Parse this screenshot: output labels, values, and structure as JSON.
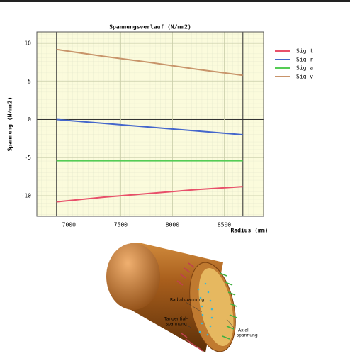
{
  "chart_data": {
    "type": "line",
    "title": "Spannungsverlauf (N/mm2)",
    "x_label": "Radius (mm)",
    "y_label": "Spannung (N/mm2)",
    "x": [
      6880,
      7330,
      7780,
      8230,
      8680
    ],
    "series": [
      {
        "name": "Sig t",
        "color": "#e8506a",
        "values": [
          -10.8,
          -10.2,
          -9.7,
          -9.2,
          -8.8
        ]
      },
      {
        "name": "Sig r",
        "color": "#4466cc",
        "values": [
          0,
          -0.5,
          -1.0,
          -1.5,
          -2.0
        ]
      },
      {
        "name": "Sig a",
        "color": "#55cc55",
        "values": [
          -5.4,
          -5.4,
          -5.4,
          -5.4,
          -5.4
        ]
      },
      {
        "name": "Sig v",
        "color": "#c8946a",
        "values": [
          9.2,
          8.3,
          7.5,
          6.6,
          5.8
        ]
      }
    ],
    "xlim": [
      6690,
      8880
    ],
    "xticks": [
      7000,
      7500,
      8000,
      8500
    ],
    "ylim": [
      -12.7,
      11.5
    ],
    "yticks": [
      10,
      5,
      0,
      -5,
      -10
    ],
    "grid": true
  },
  "illustration": {
    "labels": [
      "Radialspannung",
      "Tangential-",
      "spannung",
      "Axial-",
      "spannung"
    ]
  }
}
